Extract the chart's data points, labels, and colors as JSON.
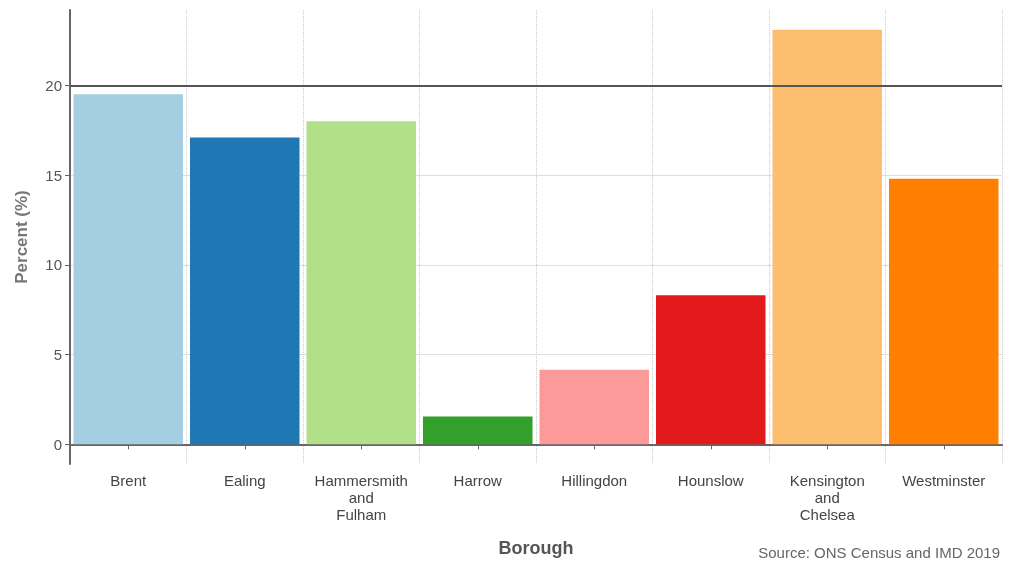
{
  "chart_data": {
    "type": "bar",
    "xlabel": "Borough",
    "ylabel": "Percent (%)",
    "categories": [
      "Brent",
      "Ealing",
      "Hammersmith\nand\nFulham",
      "Harrow",
      "Hillingdon",
      "Hounslow",
      "Kensington\nand\nChelsea",
      "Westminster"
    ],
    "values": [
      19.5,
      17.1,
      18.0,
      1.55,
      4.15,
      8.3,
      23.1,
      14.8
    ],
    "colors": [
      "#a6cee3",
      "#1f78b4",
      "#b2df8a",
      "#33a02c",
      "#fb9a99",
      "#e31a1c",
      "#fdbf6f",
      "#ff7f00"
    ],
    "ylim": [
      -1.1,
      24.2
    ],
    "yticks": [
      0,
      5,
      10,
      15,
      20
    ],
    "grid": true,
    "ref_lines": [
      {
        "axis": "y",
        "value": 20,
        "label": null,
        "color": "#555555"
      }
    ],
    "annotations": [
      "Source: ONS Census and IMD 2019"
    ]
  }
}
